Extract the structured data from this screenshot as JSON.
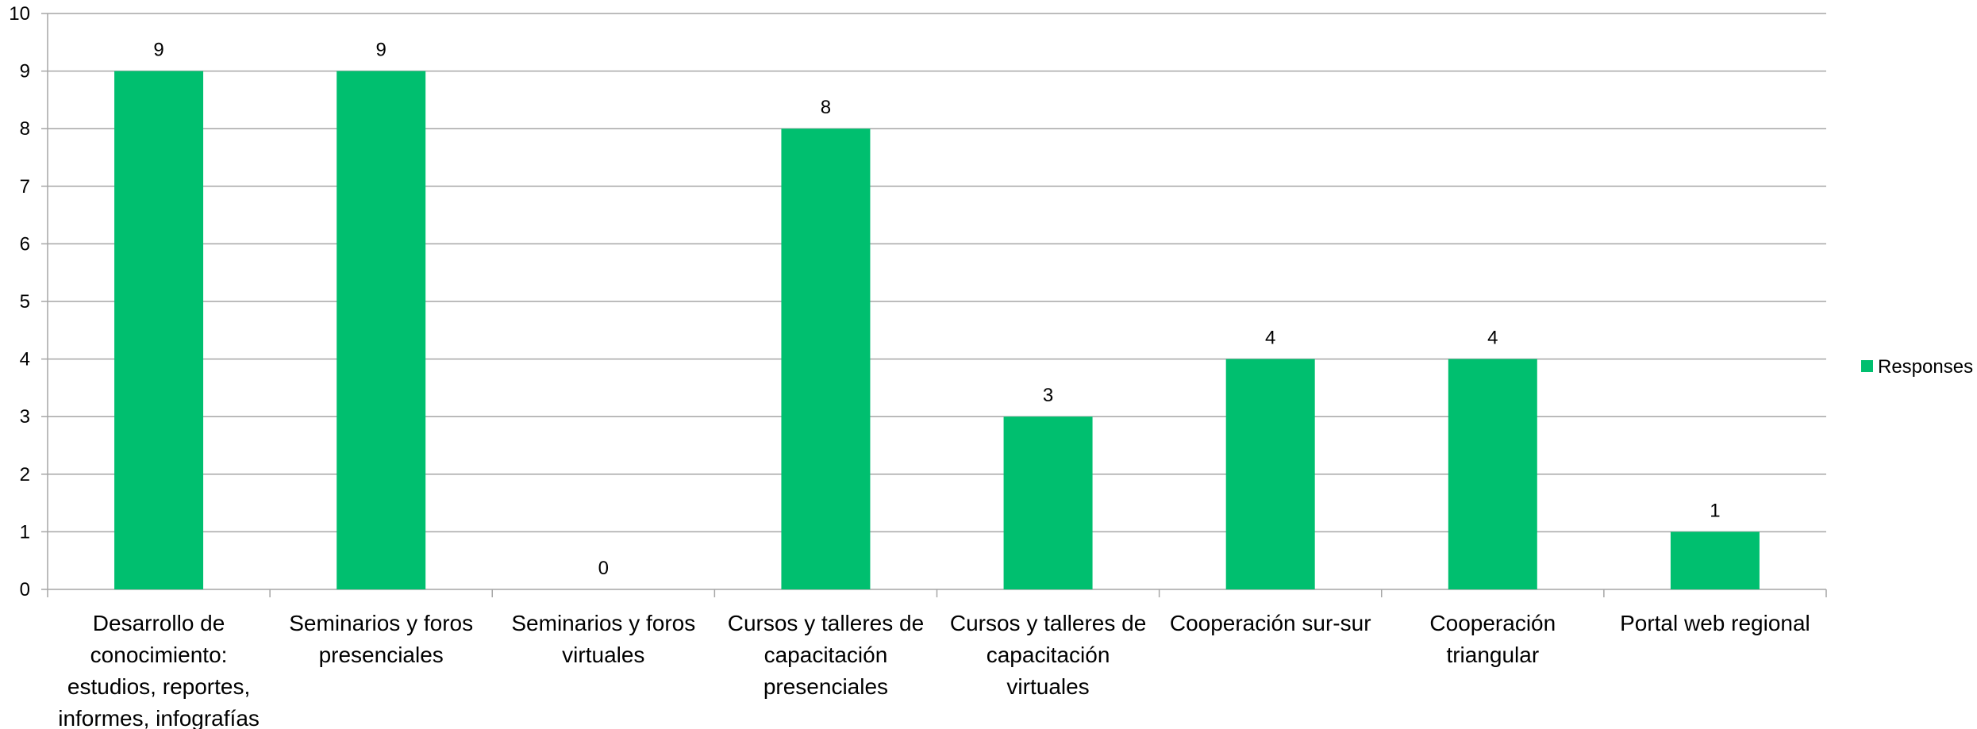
{
  "chart_data": {
    "type": "bar",
    "categories": [
      [
        "Desarrollo de",
        "conocimiento:",
        "estudios, reportes,",
        "informes, infografías"
      ],
      [
        "Seminarios y foros",
        "presenciales"
      ],
      [
        "Seminarios y foros",
        "virtuales"
      ],
      [
        "Cursos y talleres de",
        "capacitación",
        "presenciales"
      ],
      [
        "Cursos y talleres de",
        "capacitación",
        "virtuales"
      ],
      [
        "Cooperación sur-sur"
      ],
      [
        "Cooperación",
        "triangular"
      ],
      [
        "Portal web regional"
      ]
    ],
    "series": [
      {
        "name": "Responses",
        "values": [
          9,
          9,
          0,
          8,
          3,
          4,
          4,
          1
        ],
        "color": "#00BF6F"
      }
    ],
    "ylim": [
      0,
      10
    ],
    "yticks": [
      0,
      1,
      2,
      3,
      4,
      5,
      6,
      7,
      8,
      9,
      10
    ],
    "grid": true,
    "grid_color": "#A6A6A6",
    "data_labels": true,
    "legend_position": "right"
  }
}
